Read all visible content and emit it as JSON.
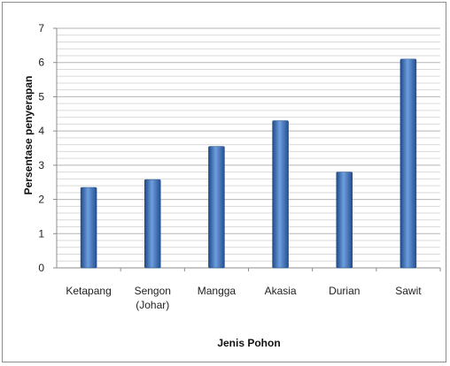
{
  "chart_data": {
    "type": "bar",
    "categories": [
      "Ketapang",
      "Sengon (Johar)",
      "Mangga",
      "Akasia",
      "Durian",
      "Sawit"
    ],
    "category_lines": [
      [
        "Ketapang"
      ],
      [
        "Sengon",
        "(Johar)"
      ],
      [
        "Mangga"
      ],
      [
        "Akasia"
      ],
      [
        "Durian"
      ],
      [
        "Sawit"
      ]
    ],
    "values": [
      2.35,
      2.58,
      3.55,
      4.3,
      2.8,
      6.1
    ],
    "title": "",
    "xlabel": "Jenis Pohon",
    "ylabel": "Persentase penyerapan",
    "ylim": [
      0,
      7
    ],
    "yticks": [
      0,
      1,
      2,
      3,
      4,
      5,
      6,
      7
    ],
    "minor_grid_step": 0.2,
    "grid": true,
    "legend": "none",
    "bar_color": "#3b6fb6",
    "bar_highlight": "#7ea9e0",
    "bar_shadow": "#1f4a86"
  }
}
